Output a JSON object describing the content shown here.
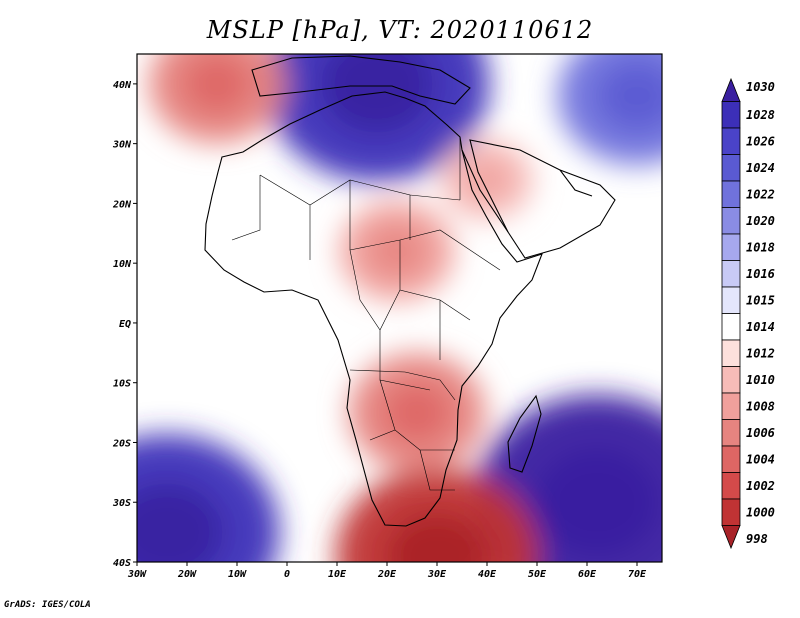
{
  "chart_data": {
    "type": "heatmap",
    "title": "MSLP [hPa], VT: 2020110612",
    "xlabel": "",
    "ylabel": "",
    "lon_range": [
      -30,
      75
    ],
    "lat_range": [
      -40,
      45
    ],
    "x_ticks": [
      "30W",
      "20W",
      "10W",
      "0",
      "10E",
      "20E",
      "30E",
      "40E",
      "50E",
      "60E",
      "70E"
    ],
    "y_ticks": [
      "40N",
      "30N",
      "20N",
      "10N",
      "EQ",
      "10S",
      "20S",
      "30S",
      "40S"
    ],
    "colorbar_levels": [
      "1030",
      "1028",
      "1026",
      "1024",
      "1022",
      "1020",
      "1018",
      "1016",
      "1015",
      "1014",
      "1012",
      "1010",
      "1008",
      "1006",
      "1004",
      "1002",
      "1000",
      "998"
    ],
    "colorbar_colors": [
      "#3a1fa0",
      "#3c2fb8",
      "#4a43c8",
      "#5a5ad2",
      "#7072dc",
      "#8a8ce4",
      "#a6a8ee",
      "#c8caf6",
      "#e4e6fc",
      "#ffffff",
      "#fde0dc",
      "#f7bcb8",
      "#f0a09c",
      "#e68480",
      "#de6664",
      "#d44a4a",
      "#c03334",
      "#a82228"
    ],
    "pressure_systems": [
      {
        "label": "high",
        "lon": -24,
        "lat": -35,
        "value": 1028
      },
      {
        "label": "high",
        "lon": 62,
        "lat": -30,
        "value": 1030
      },
      {
        "label": "high",
        "lon": 18,
        "lat": 40,
        "value": 1028
      },
      {
        "label": "high",
        "lon": 70,
        "lat": 38,
        "value": 1022
      },
      {
        "label": "low",
        "lon": -14,
        "lat": 40,
        "value": 1006
      },
      {
        "label": "low",
        "lon": 30,
        "lat": -39,
        "value": 1000
      },
      {
        "label": "low",
        "lon": 26,
        "lat": -15,
        "value": 1006
      },
      {
        "label": "low",
        "lon": 22,
        "lat": 12,
        "value": 1008
      },
      {
        "label": "low",
        "lon": 40,
        "lat": 24,
        "value": 1010
      }
    ],
    "grid": false,
    "colorbar_position": "right"
  },
  "credit": "GrADS: IGES/COLA"
}
